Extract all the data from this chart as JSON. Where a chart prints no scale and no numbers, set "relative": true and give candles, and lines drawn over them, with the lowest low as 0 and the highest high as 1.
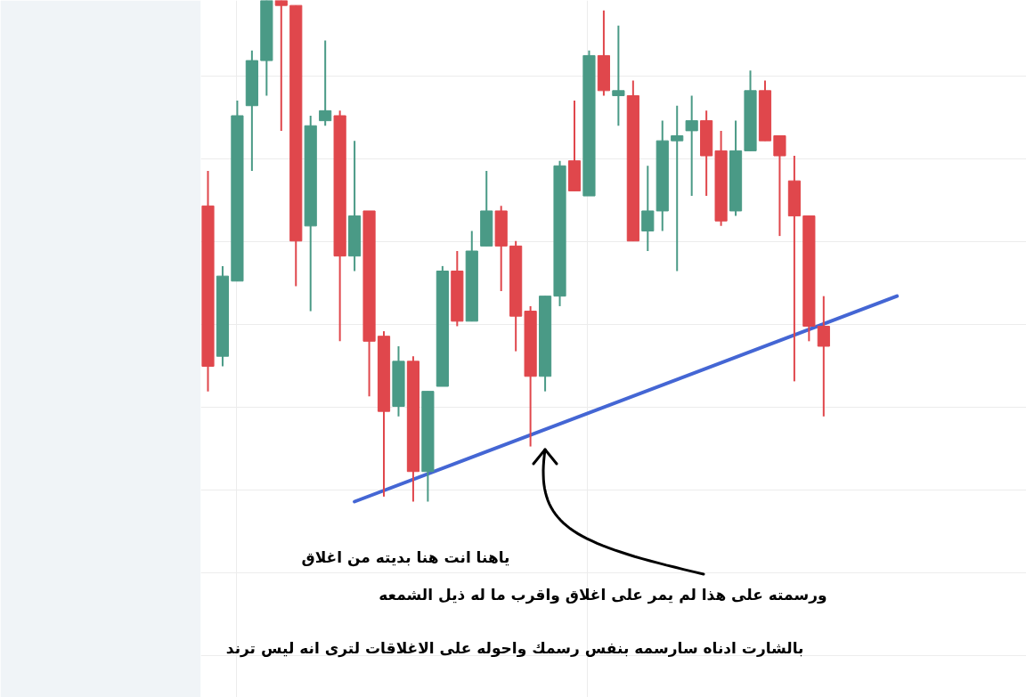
{
  "chart_data": {
    "type": "candlestick",
    "relative": true,
    "grid": true,
    "categories": [
      null,
      null,
      null,
      null,
      null,
      null,
      null,
      null,
      null,
      null,
      null,
      null,
      null,
      null,
      null,
      null,
      null,
      null,
      null,
      null,
      null,
      null,
      null,
      null,
      null,
      null,
      null,
      null,
      null,
      null,
      null,
      null,
      null,
      null,
      null,
      null,
      null,
      null,
      null,
      null,
      null,
      null,
      null,
      null,
      null,
      null,
      null,
      null
    ],
    "colors": [
      "#e0474c",
      "#4a9a86",
      "#4a9a86",
      "#4a9a86",
      "#4a9a86",
      "#e0474c",
      "#e0474c",
      "#4a9a86",
      "#4a9a86",
      "#e0474c",
      "#4a9a86",
      "#e0474c",
      "#e0474c",
      "#4a9a86",
      "#e0474c",
      "#4a9a86",
      "#4a9a86",
      "#e0474c",
      "#4a9a86",
      "#4a9a86",
      "#e0474c",
      "#e0474c",
      "#e0474c",
      "#4a9a86",
      "#4a9a86",
      "#e0474c",
      "#4a9a86",
      "#e0474c",
      "#4a9a86",
      "#e0474c",
      "#4a9a86",
      "#4a9a86",
      "#4a9a86",
      "#4a9a86",
      "#e0474c",
      "#e0474c",
      "#4a9a86",
      "#4a9a86",
      "#e0474c",
      "#e0474c",
      "#e0474c",
      "#e0474c",
      "#e0474c",
      null,
      null,
      null,
      null,
      null
    ],
    "ohlc": [
      [
        0.59,
        0.66,
        0.22,
        0.27
      ],
      [
        0.29,
        0.47,
        0.27,
        0.45
      ],
      [
        0.44,
        0.8,
        0.44,
        0.77
      ],
      [
        0.79,
        0.9,
        0.66,
        0.88
      ],
      [
        0.88,
        1.0,
        0.81,
        1.0
      ],
      [
        1.0,
        1.0,
        0.74,
        0.99
      ],
      [
        0.99,
        0.99,
        0.43,
        0.52
      ],
      [
        0.55,
        0.77,
        0.38,
        0.75
      ],
      [
        0.76,
        0.92,
        0.75,
        0.78
      ],
      [
        0.77,
        0.78,
        0.32,
        0.49
      ],
      [
        0.49,
        0.72,
        0.46,
        0.57
      ],
      [
        0.58,
        0.58,
        0.21,
        0.32
      ],
      [
        0.33,
        0.34,
        0.01,
        0.18
      ],
      [
        0.19,
        0.31,
        0.17,
        0.28
      ],
      [
        0.28,
        0.29,
        0.0,
        0.06
      ],
      [
        0.06,
        0.22,
        0.0,
        0.22
      ],
      [
        0.23,
        0.47,
        0.23,
        0.46
      ],
      [
        0.46,
        0.5,
        0.35,
        0.36
      ],
      [
        0.36,
        0.54,
        0.36,
        0.5
      ],
      [
        0.51,
        0.66,
        0.51,
        0.58
      ],
      [
        0.58,
        0.59,
        0.42,
        0.51
      ],
      [
        0.51,
        0.52,
        0.3,
        0.37
      ],
      [
        0.38,
        0.39,
        0.11,
        0.25
      ],
      [
        0.25,
        0.41,
        0.22,
        0.41
      ],
      [
        0.41,
        0.68,
        0.39,
        0.67
      ],
      [
        0.68,
        0.8,
        0.62,
        0.62
      ],
      [
        0.61,
        0.9,
        0.61,
        0.89
      ],
      [
        0.89,
        0.98,
        0.81,
        0.82
      ],
      [
        0.81,
        0.95,
        0.75,
        0.82
      ],
      [
        0.81,
        0.84,
        0.52,
        0.52
      ],
      [
        0.54,
        0.67,
        0.5,
        0.58
      ],
      [
        0.58,
        0.76,
        0.54,
        0.72
      ],
      [
        0.72,
        0.79,
        0.46,
        0.73
      ],
      [
        0.74,
        0.81,
        0.61,
        0.76
      ],
      [
        0.76,
        0.78,
        0.61,
        0.69
      ],
      [
        0.7,
        0.74,
        0.55,
        0.56
      ],
      [
        0.58,
        0.76,
        0.57,
        0.7
      ],
      [
        0.7,
        0.86,
        0.7,
        0.82
      ],
      [
        0.82,
        0.84,
        0.72,
        0.72
      ],
      [
        0.73,
        0.73,
        0.53,
        0.69
      ],
      [
        0.64,
        0.69,
        0.24,
        0.57
      ],
      [
        0.57,
        0.57,
        0.32,
        0.35
      ],
      [
        0.35,
        0.41,
        0.17,
        0.31
      ],
      null,
      null,
      null,
      null,
      null
    ],
    "series": [
      {
        "type": "line",
        "color": "#4466d4",
        "values": [
          null,
          null,
          null,
          null,
          null,
          null,
          null,
          null,
          null,
          null,
          0.0,
          null,
          null,
          null,
          null,
          null,
          null,
          null,
          null,
          null,
          null,
          null,
          null,
          null,
          null,
          null,
          null,
          null,
          null,
          null,
          null,
          null,
          null,
          null,
          null,
          null,
          null,
          null,
          null,
          null,
          null,
          null,
          null,
          null,
          null,
          null,
          null,
          0.41
        ]
      }
    ],
    "annotations": [
      "ياهنا انت هنا بديته من اغلاق",
      "ورسمته على هذا لم يمر على اغلاق واقرب ما له ذيل الشمعه",
      "بالشارت ادناه سارسمه بنفس رسمك واحوله على الاغلاقات لترى انه ليس ترند"
    ]
  }
}
